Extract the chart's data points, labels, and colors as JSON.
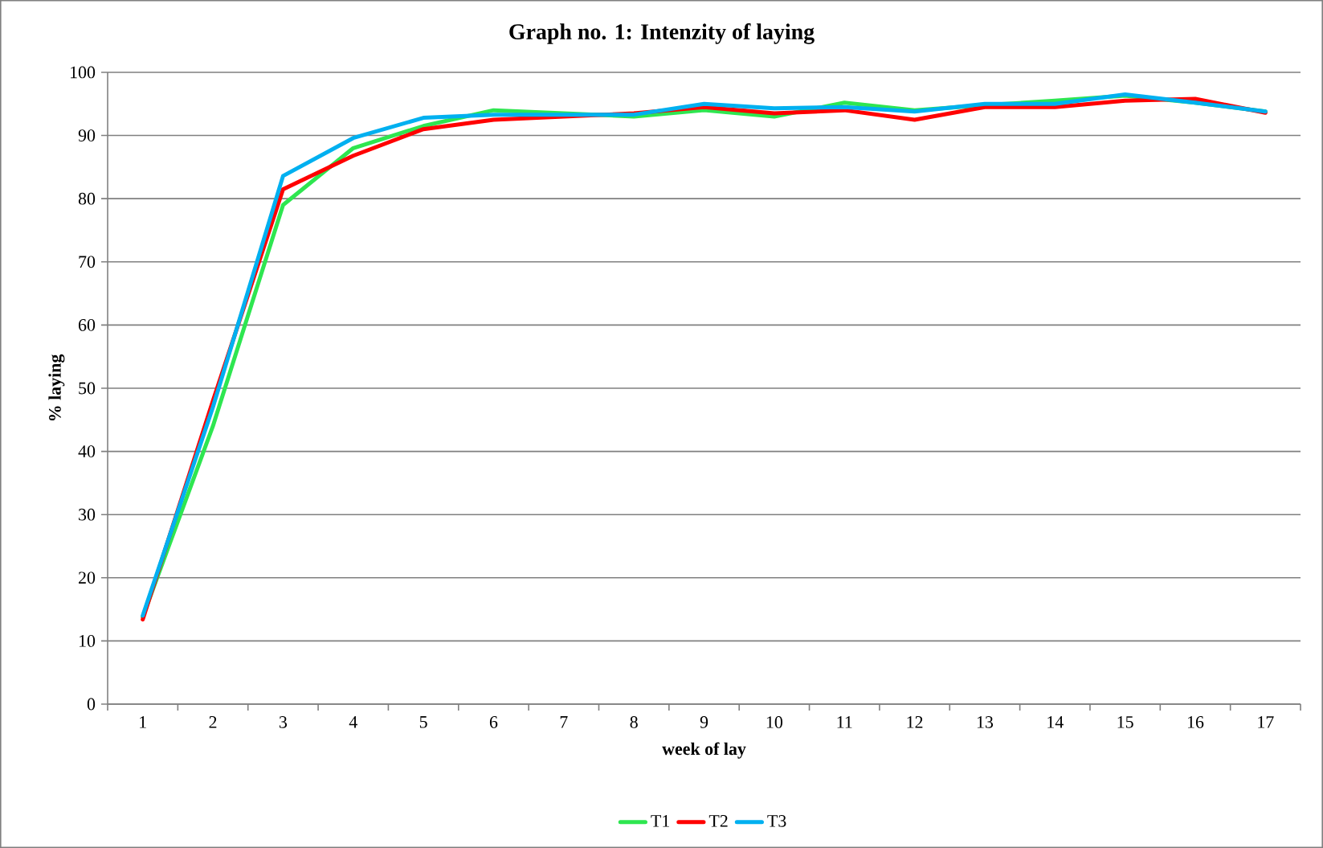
{
  "chart_data": {
    "type": "line",
    "title": "Graph no. 1: Intenzity of laying",
    "xlabel": "week of lay",
    "ylabel": "% laying",
    "categories": [
      "1",
      "2",
      "3",
      "4",
      "5",
      "6",
      "7",
      "8",
      "9",
      "10",
      "11",
      "12",
      "13",
      "14",
      "15",
      "16",
      "17"
    ],
    "ylim": [
      0,
      100
    ],
    "yticks": [
      0,
      10,
      20,
      30,
      40,
      50,
      60,
      70,
      80,
      90,
      100
    ],
    "grid": "y",
    "legend": "bottom",
    "marker": "none",
    "line_style": "solid",
    "series": [
      {
        "name": "T1",
        "color": "#2ee650",
        "values": [
          13.8,
          44,
          79,
          88,
          91.5,
          94,
          93.5,
          93,
          94,
          93,
          95.2,
          94,
          94.8,
          95.5,
          96.3,
          95.2,
          93.8
        ]
      },
      {
        "name": "T2",
        "color": "#ff0000",
        "values": [
          13.4,
          48,
          81.5,
          86.8,
          91,
          92.5,
          93,
          93.5,
          94.5,
          93.5,
          94,
          92.5,
          94.5,
          94.5,
          95.5,
          95.8,
          93.6
        ]
      },
      {
        "name": "T3",
        "color": "#00b0f0",
        "values": [
          14,
          47,
          83.6,
          89.6,
          92.8,
          93.3,
          93.3,
          93.3,
          95,
          94.3,
          94.5,
          93.8,
          95,
          95,
          96.5,
          95.2,
          93.8
        ]
      }
    ]
  }
}
